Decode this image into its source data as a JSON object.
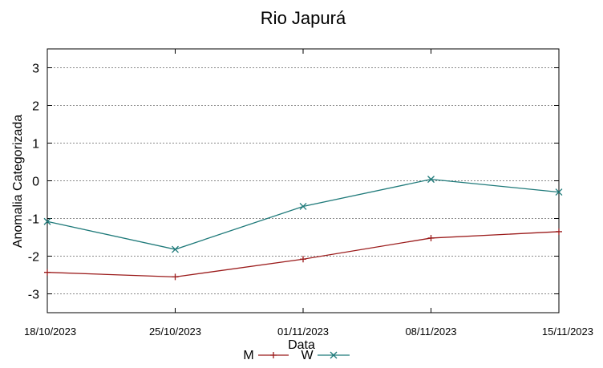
{
  "chart_data": {
    "type": "line",
    "title": "Rio Japurá",
    "xlabel": "Data",
    "ylabel": "Anomalia Categorizada",
    "categories": [
      "18/10/2023",
      "25/10/2023",
      "01/11/2023",
      "08/11/2023",
      "15/11/2023"
    ],
    "ylim": [
      -3.5,
      3.5
    ],
    "yticks": [
      3,
      2,
      1,
      0,
      -1,
      -2,
      -3
    ],
    "grid": true,
    "legend_position": "bottom-center",
    "series": [
      {
        "name": "M",
        "color": "#9b1b1b",
        "marker": "plus",
        "values": [
          -2.43,
          -2.55,
          -2.08,
          -1.52,
          -1.35
        ]
      },
      {
        "name": "W",
        "color": "#1f7a7a",
        "marker": "cross",
        "values": [
          -1.08,
          -1.82,
          -0.68,
          0.04,
          -0.3
        ]
      }
    ]
  }
}
